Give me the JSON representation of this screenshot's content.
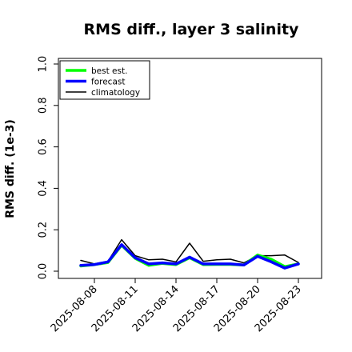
{
  "chart_data": {
    "type": "line",
    "title": "RMS diff., layer 3 salinity",
    "xlabel": "",
    "ylabel": "RMS diff. (1e-3)",
    "ylim": [
      0.0,
      1.0
    ],
    "yticks": [
      "0.0",
      "0.2",
      "0.4",
      "0.6",
      "0.8",
      "1.0"
    ],
    "xticks": [
      "2025-08-08",
      "2025-08-11",
      "2025-08-14",
      "2025-08-17",
      "2025-08-20",
      "2025-08-23"
    ],
    "highlighted_xtick": "2025-08-14",
    "highlight_color": "#228b22",
    "grid": false,
    "legend_position": "top-left",
    "x": [
      "2025-08-07",
      "2025-08-08",
      "2025-08-09",
      "2025-08-10",
      "2025-08-11",
      "2025-08-12",
      "2025-08-13",
      "2025-08-14",
      "2025-08-15",
      "2025-08-16",
      "2025-08-17",
      "2025-08-18",
      "2025-08-19",
      "2025-08-20",
      "2025-08-21",
      "2025-08-22",
      "2025-08-23"
    ],
    "series": [
      {
        "name": "best est.",
        "color": "#00ff00",
        "values": [
          0.025,
          0.032,
          0.042,
          0.125,
          0.062,
          0.028,
          0.038,
          0.032,
          0.065,
          0.032,
          0.033,
          0.033,
          0.03,
          0.078,
          0.058,
          0.022,
          0.035
        ]
      },
      {
        "name": "forecast",
        "color": "#0000ff",
        "values": [
          0.028,
          0.032,
          0.045,
          0.128,
          0.065,
          0.035,
          0.04,
          0.035,
          0.068,
          0.035,
          0.035,
          0.035,
          0.03,
          0.072,
          0.045,
          0.015,
          0.035
        ]
      },
      {
        "name": "climatology",
        "color": "#000000",
        "values": [
          0.052,
          0.035,
          0.048,
          0.152,
          0.075,
          0.055,
          0.058,
          0.045,
          0.135,
          0.048,
          0.055,
          0.058,
          0.04,
          0.075,
          0.075,
          0.078,
          0.042
        ]
      }
    ]
  }
}
